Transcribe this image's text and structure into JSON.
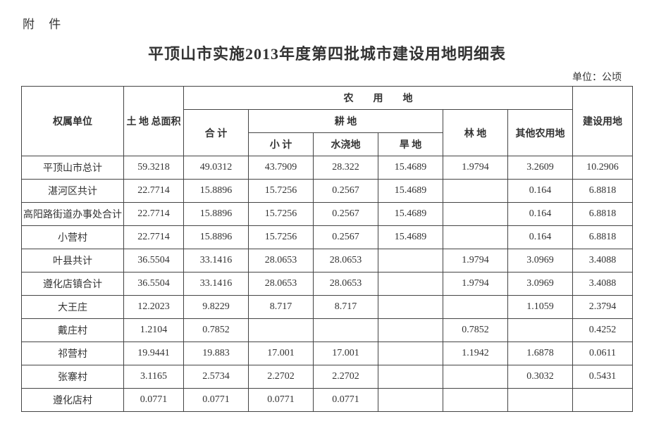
{
  "attachment_label": "附 件",
  "title": "平顶山市实施2013年度第四批城市建设用地明细表",
  "unit_label": "单位：公顷",
  "headers": {
    "ownership_unit": "权属单位",
    "total_area": "土 地\n总面积",
    "agricultural_land": "农　　用　　地",
    "subtotal_agri": "合 计",
    "cultivated_land": "耕 地",
    "cultivated_subtotal": "小 计",
    "irrigated": "水浇地",
    "dryland": "旱 地",
    "forest": "林 地",
    "other_agri": "其他农用地",
    "construction_land": "建设用地"
  },
  "rows": [
    {
      "name": "平顶山市总计",
      "total": "59.3218",
      "agri_sub": "49.0312",
      "cult_sub": "43.7909",
      "irrig": "28.322",
      "dry": "15.4689",
      "forest": "1.9794",
      "other": "3.2609",
      "constr": "10.2906"
    },
    {
      "name": "湛河区共计",
      "total": "22.7714",
      "agri_sub": "15.8896",
      "cult_sub": "15.7256",
      "irrig": "0.2567",
      "dry": "15.4689",
      "forest": "",
      "other": "0.164",
      "constr": "6.8818"
    },
    {
      "name": "高阳路街道办事处合计",
      "total": "22.7714",
      "agri_sub": "15.8896",
      "cult_sub": "15.7256",
      "irrig": "0.2567",
      "dry": "15.4689",
      "forest": "",
      "other": "0.164",
      "constr": "6.8818"
    },
    {
      "name": "小营村",
      "total": "22.7714",
      "agri_sub": "15.8896",
      "cult_sub": "15.7256",
      "irrig": "0.2567",
      "dry": "15.4689",
      "forest": "",
      "other": "0.164",
      "constr": "6.8818"
    },
    {
      "name": "叶县共计",
      "total": "36.5504",
      "agri_sub": "33.1416",
      "cult_sub": "28.0653",
      "irrig": "28.0653",
      "dry": "",
      "forest": "1.9794",
      "other": "3.0969",
      "constr": "3.4088"
    },
    {
      "name": "遵化店镇合计",
      "total": "36.5504",
      "agri_sub": "33.1416",
      "cult_sub": "28.0653",
      "irrig": "28.0653",
      "dry": "",
      "forest": "1.9794",
      "other": "3.0969",
      "constr": "3.4088"
    },
    {
      "name": "大王庄",
      "total": "12.2023",
      "agri_sub": "9.8229",
      "cult_sub": "8.717",
      "irrig": "8.717",
      "dry": "",
      "forest": "",
      "other": "1.1059",
      "constr": "2.3794"
    },
    {
      "name": "戴庄村",
      "total": "1.2104",
      "agri_sub": "0.7852",
      "cult_sub": "",
      "irrig": "",
      "dry": "",
      "forest": "0.7852",
      "other": "",
      "constr": "0.4252"
    },
    {
      "name": "祁营村",
      "total": "19.9441",
      "agri_sub": "19.883",
      "cult_sub": "17.001",
      "irrig": "17.001",
      "dry": "",
      "forest": "1.1942",
      "other": "1.6878",
      "constr": "0.0611"
    },
    {
      "name": "张寨村",
      "total": "3.1165",
      "agri_sub": "2.5734",
      "cult_sub": "2.2702",
      "irrig": "2.2702",
      "dry": "",
      "forest": "",
      "other": "0.3032",
      "constr": "0.5431"
    },
    {
      "name": "遵化店村",
      "total": "0.0771",
      "agri_sub": "0.0771",
      "cult_sub": "0.0771",
      "irrig": "0.0771",
      "dry": "",
      "forest": "",
      "other": "",
      "constr": ""
    }
  ]
}
